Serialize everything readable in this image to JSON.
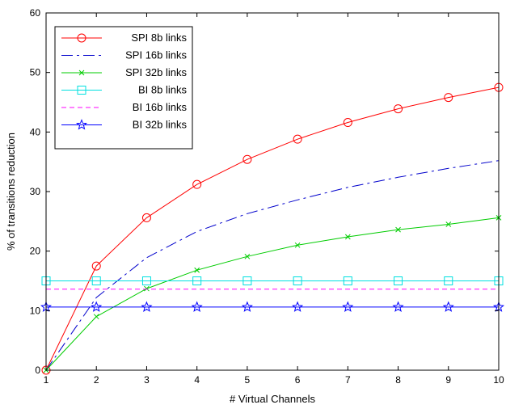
{
  "chart_data": {
    "type": "line",
    "title": "",
    "xlabel": "# Virtual Channels",
    "ylabel": "% of transitions reduction",
    "xlim": [
      1,
      10
    ],
    "ylim": [
      0,
      60
    ],
    "xticks": [
      1,
      2,
      3,
      4,
      5,
      6,
      7,
      8,
      9,
      10
    ],
    "yticks": [
      0,
      10,
      20,
      30,
      40,
      50,
      60
    ],
    "x": [
      1,
      2,
      3,
      4,
      5,
      6,
      7,
      8,
      9,
      10
    ],
    "grid": false,
    "legend_position": "top-left",
    "series": [
      {
        "name": "SPI 8b links",
        "color": "#ff0000",
        "line": "solid",
        "marker": "circle",
        "values": [
          0,
          17.5,
          25.6,
          31.2,
          35.4,
          38.8,
          41.6,
          43.9,
          45.8,
          47.5
        ]
      },
      {
        "name": "SPI 16b links",
        "color": "#0000cc",
        "line": "dashdot",
        "marker": "none",
        "values": [
          0,
          12.2,
          18.9,
          23.3,
          26.3,
          28.6,
          30.7,
          32.4,
          33.9,
          35.2
        ]
      },
      {
        "name": "SPI 32b links",
        "color": "#00cc00",
        "line": "solid",
        "marker": "x",
        "values": [
          0,
          9.0,
          13.7,
          16.8,
          19.1,
          21.0,
          22.4,
          23.6,
          24.5,
          25.6
        ]
      },
      {
        "name": "BI 8b links",
        "color": "#00e0e0",
        "line": "solid",
        "marker": "square",
        "values": [
          15,
          15,
          15,
          15,
          15,
          15,
          15,
          15,
          15,
          15
        ]
      },
      {
        "name": "BI 16b links",
        "color": "#ff00ff",
        "line": "dashed",
        "marker": "none",
        "values": [
          13.6,
          13.6,
          13.6,
          13.6,
          13.6,
          13.6,
          13.6,
          13.6,
          13.6,
          13.6
        ]
      },
      {
        "name": "BI 32b links",
        "color": "#0000ff",
        "line": "solid",
        "marker": "star",
        "values": [
          10.6,
          10.6,
          10.6,
          10.6,
          10.6,
          10.6,
          10.6,
          10.6,
          10.6,
          10.6
        ]
      }
    ]
  }
}
